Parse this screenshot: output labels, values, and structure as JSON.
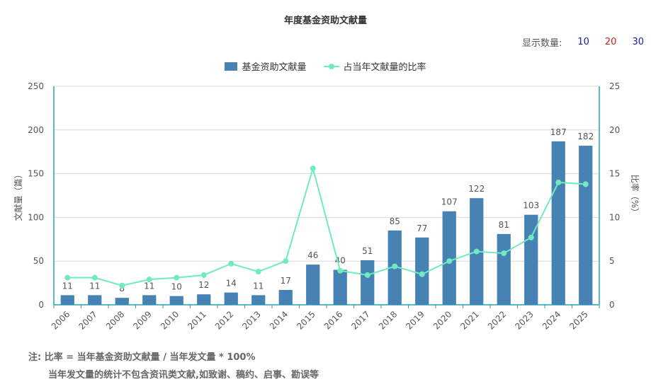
{
  "title": "年度基金资助文献量",
  "display_count": {
    "label": "显示数量:",
    "options": [
      {
        "value": "10",
        "color": "#1a1aa6"
      },
      {
        "value": "20",
        "color": "#cc2222"
      },
      {
        "value": "30",
        "color": "#1a1aa6"
      }
    ]
  },
  "legend": {
    "bar_label": "基金资助文献量",
    "line_label": "占当年文献量的比率"
  },
  "colors": {
    "bar": "#4682B4",
    "line": "#70EBC0",
    "axis": "#22a5b0",
    "grid": "#d9d9d9"
  },
  "chart_data": {
    "type": "bar",
    "title": "年度基金资助文献量",
    "categories": [
      "2006",
      "2007",
      "2008",
      "2009",
      "2010",
      "2011",
      "2012",
      "2013",
      "2014",
      "2015",
      "2016",
      "2017",
      "2018",
      "2019",
      "2020",
      "2021",
      "2022",
      "2023",
      "2024",
      "2025"
    ],
    "series": [
      {
        "name": "基金资助文献量",
        "type": "bar",
        "axis": "left",
        "values": [
          11,
          11,
          8,
          11,
          10,
          12,
          14,
          11,
          17,
          46,
          40,
          51,
          85,
          77,
          107,
          122,
          81,
          103,
          187,
          182
        ]
      },
      {
        "name": "占当年文献量的比率",
        "type": "line",
        "axis": "right",
        "values": [
          3.1,
          3.1,
          2.2,
          2.9,
          3.1,
          3.4,
          4.7,
          3.8,
          5.0,
          15.6,
          3.9,
          3.4,
          4.4,
          3.5,
          5.0,
          6.1,
          5.9,
          7.7,
          14.0,
          13.8
        ]
      }
    ],
    "ylabel": "文献量（篇）",
    "y2label": "比率（%）",
    "ylim": [
      0,
      250
    ],
    "y2lim": [
      0,
      25
    ],
    "yticks": [
      0,
      50,
      100,
      150,
      200,
      250
    ],
    "y2ticks": [
      0,
      5,
      10,
      15,
      20,
      25
    ],
    "grid": true,
    "legend_position": "top-center"
  },
  "notes": {
    "line1": "注:  比率 = 当年基金资助文献量 / 当年发文量 * 100%",
    "line2": "当年发文量的统计不包含资讯类文献,如致谢、稿约、启事、勘误等"
  }
}
